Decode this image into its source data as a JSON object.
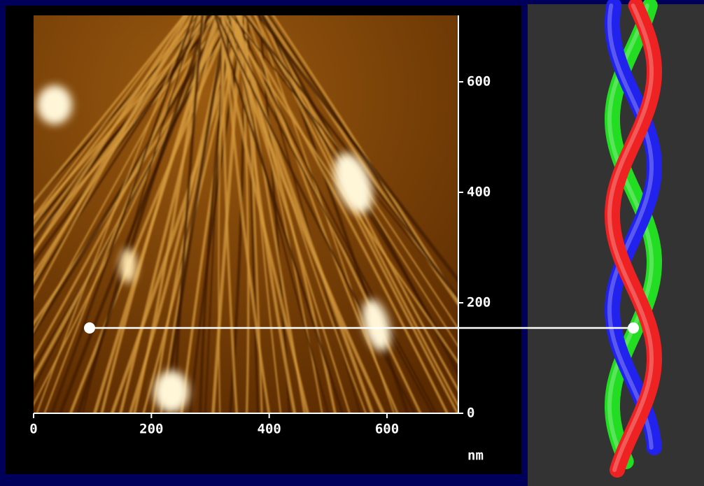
{
  "afm_image": {
    "x_ticks": [
      0,
      200,
      400,
      600
    ],
    "y_ticks": [
      0,
      200,
      400,
      600
    ],
    "unit": "nm"
  }
}
